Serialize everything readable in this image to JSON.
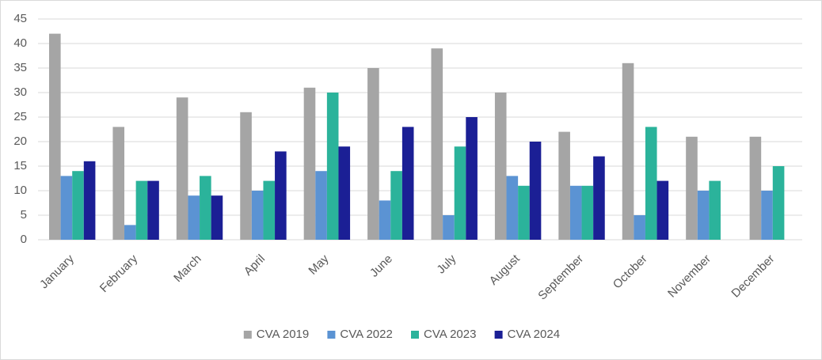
{
  "chart_data": {
    "type": "bar",
    "categories": [
      "January",
      "February",
      "March",
      "April",
      "May",
      "June",
      "July",
      "August",
      "September",
      "October",
      "November",
      "December"
    ],
    "series": [
      {
        "name": "CVA 2019",
        "color": "#a5a5a5",
        "values": [
          42,
          23,
          29,
          26,
          31,
          35,
          39,
          30,
          22,
          36,
          21,
          21
        ]
      },
      {
        "name": "CVA 2022",
        "color": "#5b93d3",
        "values": [
          13,
          3,
          9,
          10,
          14,
          8,
          5,
          13,
          11,
          5,
          10,
          10
        ]
      },
      {
        "name": "CVA 2023",
        "color": "#2bb39b",
        "values": [
          14,
          12,
          13,
          12,
          30,
          14,
          19,
          11,
          11,
          23,
          12,
          15
        ]
      },
      {
        "name": "CVA 2024",
        "color": "#1b1f95",
        "values": [
          16,
          12,
          9,
          18,
          19,
          23,
          25,
          20,
          17,
          12,
          null,
          null
        ]
      }
    ],
    "ylim": [
      0,
      45
    ],
    "yticks": [
      0,
      5,
      10,
      15,
      20,
      25,
      30,
      35,
      40,
      45
    ],
    "grid": true,
    "legend": "bottom"
  }
}
